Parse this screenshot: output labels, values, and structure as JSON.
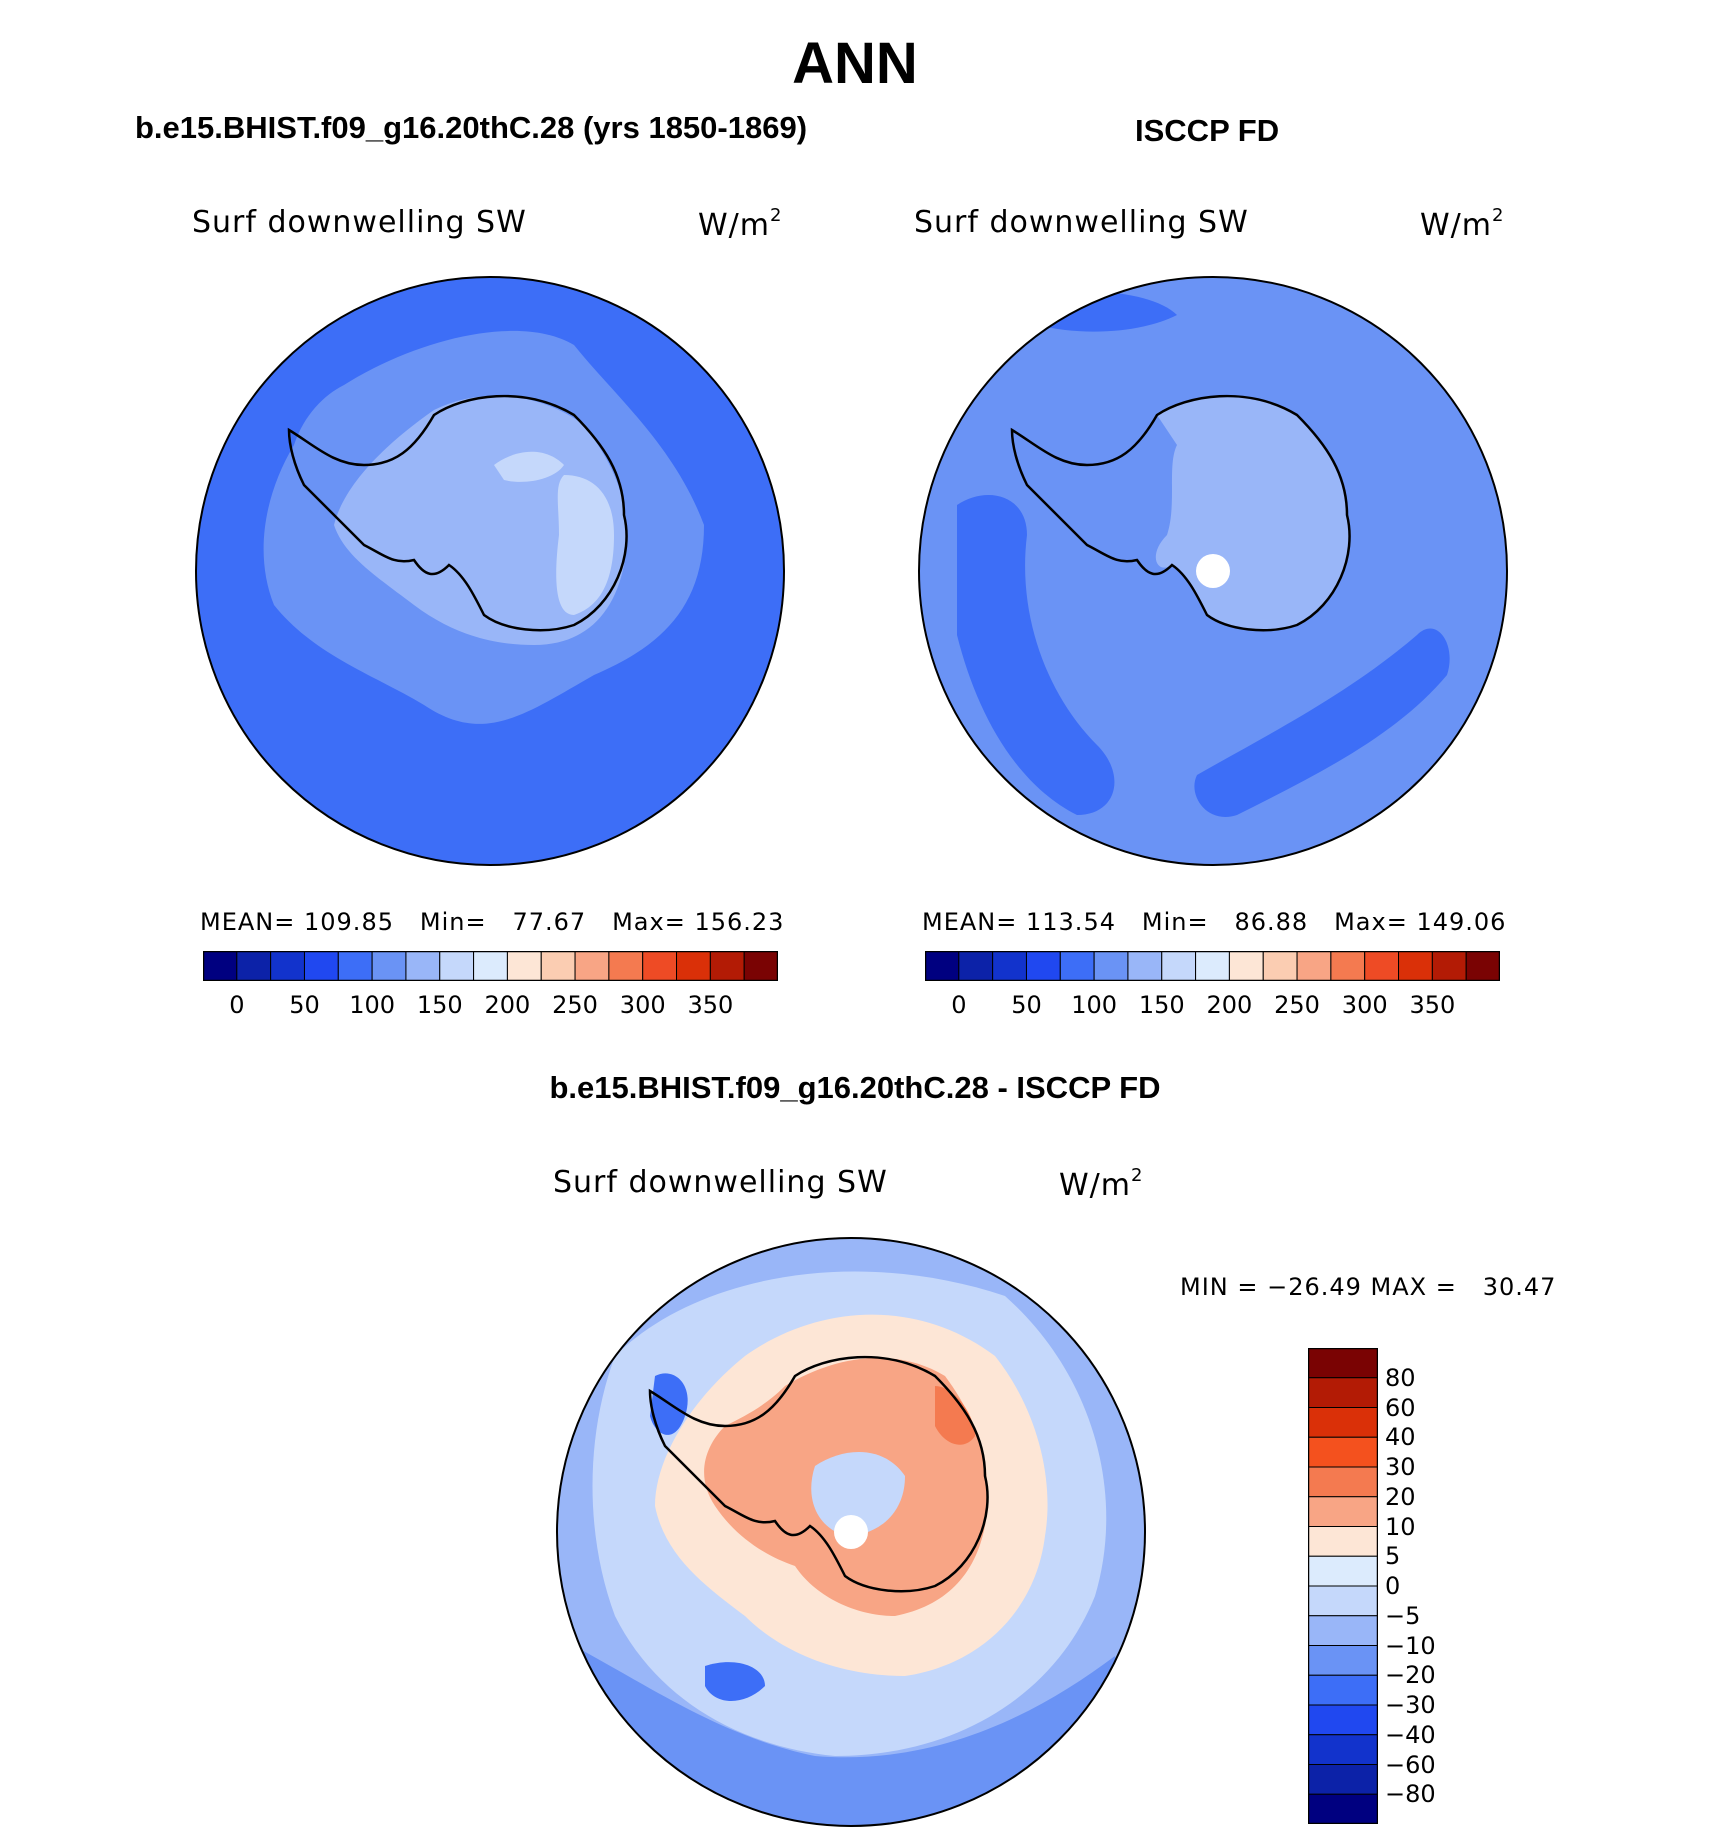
{
  "page": {
    "title": "ANN",
    "difference_title": "b.e15.BHIST.f09_g16.20thC.28 - ISCCP FD"
  },
  "panels": [
    {
      "title": "b.e15.BHIST.f09_g16.20thC.28 (yrs 1850-1869)",
      "variable": "Surf downwelling SW",
      "unit_base": "W/m",
      "unit_exp": "2",
      "stats_mean_label": "MEAN=",
      "stats_mean": "109.85",
      "stats_min_label": "Min=",
      "stats_min": "77.67",
      "stats_max_label": "Max=",
      "stats_max": "156.23"
    },
    {
      "title": "ISCCP FD",
      "variable": "Surf downwelling SW",
      "unit_base": "W/m",
      "unit_exp": "2",
      "stats_mean_label": "MEAN=",
      "stats_mean": "113.54",
      "stats_min_label": "Min=",
      "stats_min": "86.88",
      "stats_max_label": "Max=",
      "stats_max": "149.06"
    },
    {
      "title": "b.e15.BHIST.f09_g16.20thC.28 - ISCCP FD",
      "variable": "Surf downwelling SW",
      "unit_base": "W/m",
      "unit_exp": "2",
      "stats_text": "MIN = −26.49 MAX =   30.47"
    }
  ],
  "colorbar_abs": {
    "colors": [
      "#000080",
      "#0c22a8",
      "#1233cc",
      "#2048f0",
      "#3d6ef7",
      "#6a93f5",
      "#99b6f8",
      "#c5d8fb",
      "#dcebfd",
      "#fde6d6",
      "#fbcdb2",
      "#f8a585",
      "#f47a50",
      "#ee4b25",
      "#da3008",
      "#b31b05",
      "#7a0303"
    ],
    "tick_labels": [
      "0",
      "50",
      "100",
      "150",
      "200",
      "250",
      "300",
      "350"
    ]
  },
  "colorbar_diff": {
    "colors": [
      "#7a0303",
      "#b31b05",
      "#da3008",
      "#f4511e",
      "#f47a50",
      "#f8a585",
      "#fde6d6",
      "#dcebfd",
      "#c5d8fb",
      "#99b6f8",
      "#6a93f5",
      "#3d6ef7",
      "#2048f0",
      "#1233cc",
      "#0c22a8",
      "#000080"
    ],
    "tick_labels": [
      "80",
      "60",
      "40",
      "30",
      "20",
      "10",
      "5",
      "0",
      "−5",
      "−10",
      "−20",
      "−30",
      "−40",
      "−60",
      "−80"
    ]
  }
}
